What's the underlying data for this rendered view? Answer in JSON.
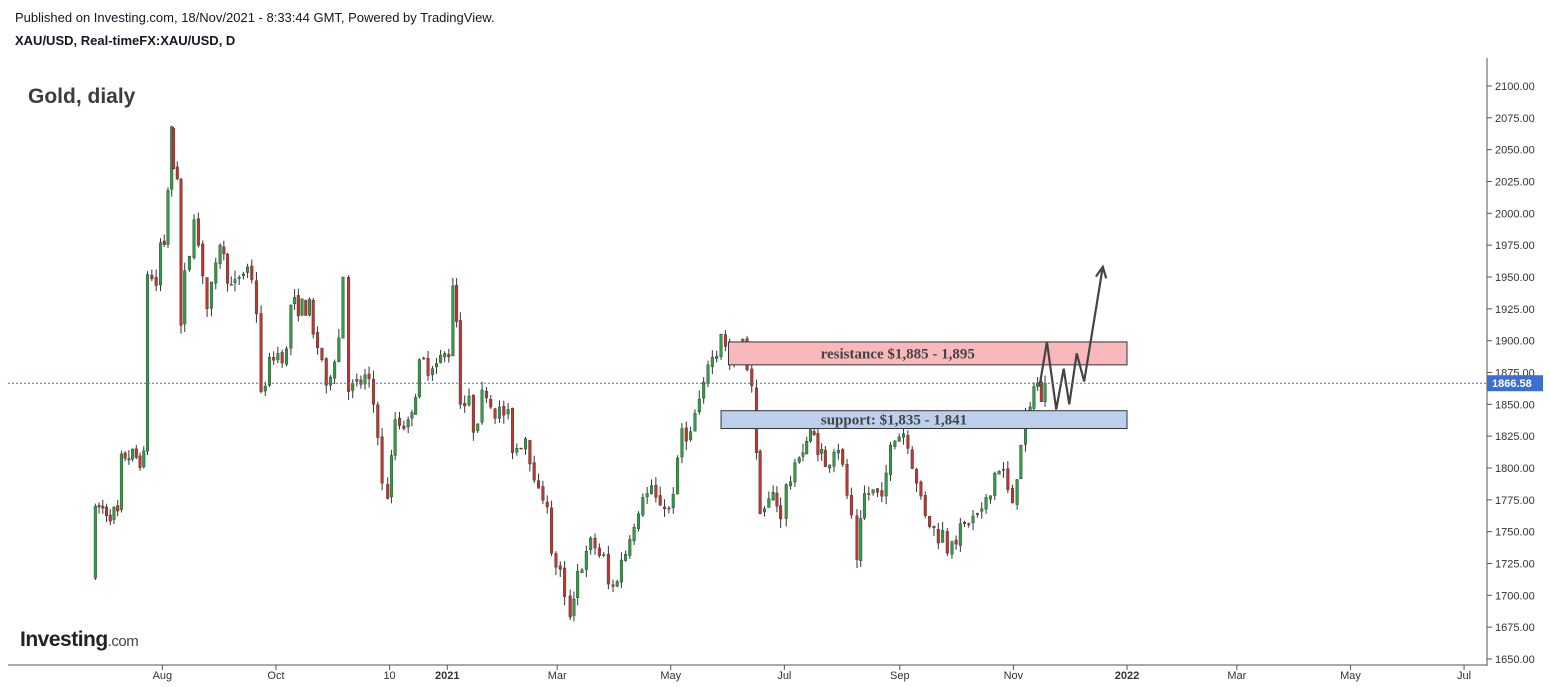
{
  "header": {
    "published": "Published on Investing.com, 18/Nov/2021 - 8:33:44 GMT, Powered by TradingView.",
    "symbol": "XAU/USD, Real-timeFX:XAU/USD, D"
  },
  "logo": {
    "main": "Investing",
    "suffix": ".com"
  },
  "chart_data": {
    "type": "candlestick",
    "title": "Gold, dialy",
    "y_axis": {
      "position": "right",
      "min": 1650,
      "max": 2100,
      "ticks": [
        2100,
        2075,
        2050,
        2025,
        2000,
        1975,
        1950,
        1925,
        1900,
        1875,
        1850,
        1825,
        1800,
        1775,
        1750,
        1725,
        1700,
        1675,
        1650
      ],
      "tick_labels": [
        "2100.00",
        "2075.00",
        "2050.00",
        "2025.00",
        "2000.00",
        "1975.00",
        "1950.00",
        "1925.00",
        "1900.00",
        "1875.00",
        "1850.00",
        "1825.00",
        "1800.00",
        "1775.00",
        "1750.00",
        "1725.00",
        "1700.00",
        "1675.00",
        "1650.00"
      ]
    },
    "x_axis": {
      "tick_labels": [
        "Aug",
        "Oct",
        "10",
        "2021",
        "Mar",
        "May",
        "Jul",
        "Sep",
        "Nov",
        "2022",
        "Mar",
        "May",
        "Jul"
      ],
      "bold": [
        "2021",
        "2022"
      ],
      "tick_months": [
        "2020-08",
        "2020-10",
        "2020-12",
        "2021-01",
        "2021-03",
        "2021-05",
        "2021-07",
        "2021-09",
        "2021-11",
        "2022-01",
        "2022-03",
        "2022-05",
        "2022-07"
      ]
    },
    "last_price": {
      "value": 1866.58,
      "label": "1866.58",
      "color": "#3b6fd4"
    },
    "colors": {
      "up": "#2e9e44",
      "down": "#c1352f",
      "wick": "#333333",
      "grid": "#e6e6e6",
      "resistance": "#f7b9bb",
      "support": "#bcd0ee",
      "path": "#444444"
    },
    "resistance": {
      "label": "resistance $1,885 - 1,895",
      "low": 1885,
      "high": 1895,
      "from": "2021-06-01",
      "to": "2022-01-01"
    },
    "support": {
      "label": "support: $1,835 - 1,841",
      "low": 1835,
      "high": 1841,
      "from": "2021-05-28",
      "to": "2022-01-01"
    },
    "projection": [
      [
        "2021-11-15",
        1864
      ],
      [
        "2021-11-19",
        1899
      ],
      [
        "2021-11-24",
        1846
      ],
      [
        "2021-11-28",
        1878
      ],
      [
        "2021-12-01",
        1850
      ],
      [
        "2021-12-05",
        1890
      ],
      [
        "2021-12-09",
        1868
      ],
      [
        "2021-12-19",
        1958
      ]
    ],
    "series": [
      [
        "2020-06-26",
        1715,
        1770
      ],
      [
        "2020-07-10",
        1762,
        1811
      ],
      [
        "2020-07-24",
        1806,
        1952
      ],
      [
        "2020-07-31",
        1940,
        1977
      ],
      [
        "2020-08-04",
        1977,
        2018
      ],
      [
        "2020-08-06",
        2050,
        2068
      ],
      [
        "2020-08-07",
        2068,
        2035
      ],
      [
        "2020-08-11",
        2028,
        1912
      ],
      [
        "2020-08-13",
        1915,
        1955
      ],
      [
        "2020-08-18",
        1985,
        1995
      ],
      [
        "2020-08-25",
        1935,
        1925
      ],
      [
        "2020-09-01",
        1968,
        1975
      ],
      [
        "2020-09-09",
        1930,
        1948
      ],
      [
        "2020-09-18",
        1960,
        1948
      ],
      [
        "2020-09-23",
        1900,
        1860
      ],
      [
        "2020-10-02",
        1900,
        1890
      ],
      [
        "2020-10-09",
        1890,
        1928
      ],
      [
        "2020-10-21",
        1925,
        1905
      ],
      [
        "2020-10-28",
        1877,
        1865
      ],
      [
        "2020-11-06",
        1915,
        1950
      ],
      [
        "2020-11-09",
        1950,
        1860
      ],
      [
        "2020-11-20",
        1872,
        1870
      ],
      [
        "2020-11-27",
        1811,
        1788
      ],
      [
        "2020-11-30",
        1788,
        1776
      ],
      [
        "2020-12-04",
        1834,
        1838
      ],
      [
        "2020-12-11",
        1835,
        1838
      ],
      [
        "2020-12-17",
        1873,
        1885
      ],
      [
        "2020-12-24",
        1878,
        1878
      ],
      [
        "2021-01-04",
        1895,
        1943
      ],
      [
        "2021-01-06",
        1951,
        1915
      ],
      [
        "2021-01-08",
        1911,
        1850
      ],
      [
        "2021-01-15",
        1850,
        1828
      ],
      [
        "2021-01-22",
        1869,
        1855
      ],
      [
        "2021-01-29",
        1842,
        1848
      ],
      [
        "2021-02-05",
        1834,
        1812
      ],
      [
        "2021-02-12",
        1826,
        1823
      ],
      [
        "2021-02-19",
        1785,
        1784
      ],
      [
        "2021-02-26",
        1770,
        1733
      ],
      [
        "2021-03-05",
        1710,
        1699
      ],
      [
        "2021-03-08",
        1699,
        1683
      ],
      [
        "2021-03-12",
        1722,
        1719
      ],
      [
        "2021-03-19",
        1735,
        1745
      ],
      [
        "2021-03-26",
        1727,
        1732
      ],
      [
        "2021-03-31",
        1684,
        1707
      ],
      [
        "2021-04-09",
        1744,
        1744
      ],
      [
        "2021-04-16",
        1766,
        1777
      ],
      [
        "2021-04-23",
        1782,
        1777
      ],
      [
        "2021-04-30",
        1768,
        1768
      ],
      [
        "2021-05-07",
        1817,
        1831
      ],
      [
        "2021-05-14",
        1823,
        1843
      ],
      [
        "2021-05-21",
        1869,
        1881
      ],
      [
        "2021-05-28",
        1896,
        1905
      ],
      [
        "2021-06-04",
        1870,
        1891
      ],
      [
        "2021-06-11",
        1898,
        1877
      ],
      [
        "2021-06-16",
        1858,
        1812
      ],
      [
        "2021-06-18",
        1775,
        1764
      ],
      [
        "2021-06-25",
        1777,
        1781
      ],
      [
        "2021-06-29",
        1762,
        1760
      ],
      [
        "2021-07-02",
        1785,
        1787
      ],
      [
        "2021-07-09",
        1801,
        1808
      ],
      [
        "2021-07-15",
        1828,
        1830
      ],
      [
        "2021-07-23",
        1806,
        1801
      ],
      [
        "2021-07-30",
        1825,
        1814
      ],
      [
        "2021-08-06",
        1763,
        1763
      ],
      [
        "2021-08-09",
        1730,
        1728
      ],
      [
        "2021-08-13",
        1778,
        1780
      ],
      [
        "2021-08-20",
        1782,
        1781
      ],
      [
        "2021-08-27",
        1795,
        1818
      ],
      [
        "2021-09-03",
        1832,
        1827
      ],
      [
        "2021-09-10",
        1795,
        1788
      ],
      [
        "2021-09-17",
        1755,
        1754
      ],
      [
        "2021-09-24",
        1744,
        1751
      ],
      [
        "2021-09-29",
        1726,
        1742
      ],
      [
        "2021-10-08",
        1757,
        1756
      ],
      [
        "2021-10-15",
        1768,
        1768
      ],
      [
        "2021-10-22",
        1782,
        1796
      ],
      [
        "2021-10-29",
        1799,
        1783
      ],
      [
        "2021-11-03",
        1766,
        1791
      ],
      [
        "2021-11-05",
        1793,
        1818
      ],
      [
        "2021-11-10",
        1849,
        1848
      ],
      [
        "2021-11-12",
        1862,
        1864
      ],
      [
        "2021-11-16",
        1867,
        1852
      ],
      [
        "2021-11-18",
        1852,
        1866.58
      ]
    ]
  }
}
